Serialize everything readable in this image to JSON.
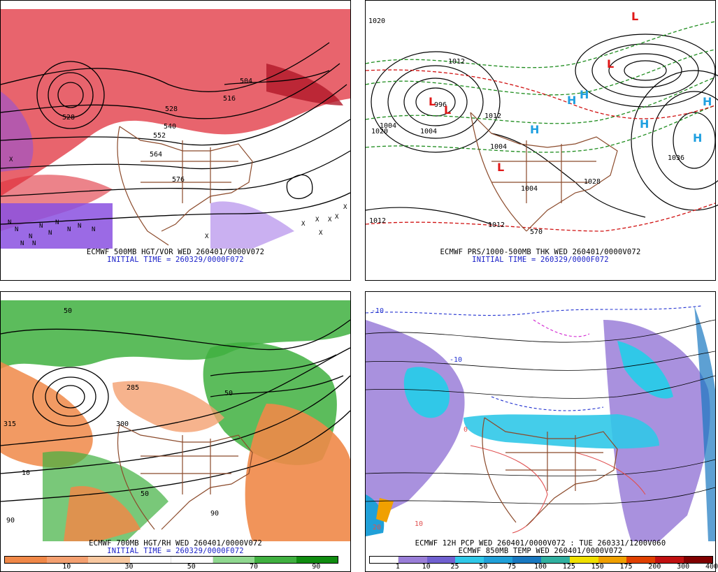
{
  "panels": {
    "p1": {
      "caption": "ECMWF 500MB HGT/VOR WED 260401/0000V072",
      "init": "INITIAL TIME = 260329/0000F072",
      "contour_labels": [
        "504",
        "516",
        "528",
        "540",
        "552",
        "564",
        "576",
        "528"
      ],
      "markers": [
        "N",
        "N",
        "N",
        "N",
        "N",
        "N",
        "N",
        "N",
        "N",
        "N",
        "N",
        "X",
        "X",
        "X",
        "X",
        "X",
        "X",
        "X",
        "X"
      ]
    },
    "p2": {
      "caption": "ECMWF PRS/1000-500MB THK WED 260401/0000V072",
      "init": "INITIAL TIME = 260329/0000F072",
      "contour_labels": [
        "1020",
        "1004",
        "1020",
        "1004",
        "996",
        "1012",
        "1012",
        "1004",
        "1036",
        "1028",
        "1012",
        "1004",
        "1012",
        "570"
      ],
      "lows": [
        "L",
        "L",
        "L",
        "L",
        "L"
      ],
      "highs": [
        "H",
        "H",
        "H",
        "H",
        "H",
        "H"
      ]
    },
    "p3": {
      "caption": "ECMWF 700MB HGT/RH WED 260401/0000V072",
      "init": "INITIAL TIME = 260329/0000F072",
      "legend": {
        "colors": [
          "#f08848",
          "#f4a070",
          "#f8c8a0",
          "#ffffff",
          "#ffffff",
          "#90d890",
          "#40b040",
          "#108c10"
        ],
        "ticks": [
          "10",
          "30",
          "50",
          "70",
          "90"
        ]
      },
      "contour_labels": [
        "285",
        "315",
        "300",
        "50",
        "50",
        "90",
        "10",
        "90",
        "50"
      ]
    },
    "p4": {
      "caption": "ECMWF 12H PCP WED 260401/0000V072 : TUE 260331/1200V060",
      "caption2": "ECMWF 850MB TEMP WED 260401/0000V072",
      "legend": {
        "colors": [
          "#ffffff",
          "#9a7ed8",
          "#7060d0",
          "#30c8e8",
          "#20a0d8",
          "#1878c0",
          "#30b0a0",
          "#f0e000",
          "#f0a000",
          "#e04000",
          "#c01010",
          "#800000"
        ],
        "ticks": [
          "1",
          "10",
          "25",
          "50",
          "75",
          "100",
          "125",
          "150",
          "175",
          "200",
          "300",
          "400"
        ]
      },
      "contour_labels": [
        "-10",
        "-10",
        "0",
        "10",
        "20"
      ]
    }
  },
  "colors": {
    "vorticity_pos": "#e0303c",
    "vorticity_neg": "#8a50e0",
    "borders": "#8b4a2b",
    "heights": "#000000",
    "thickness_warm": "#d01010",
    "thickness_cold": "#1e8c1e",
    "high_marker": "#20a0e0",
    "low_marker": "#e01818",
    "init_text": "#1a20c8"
  }
}
